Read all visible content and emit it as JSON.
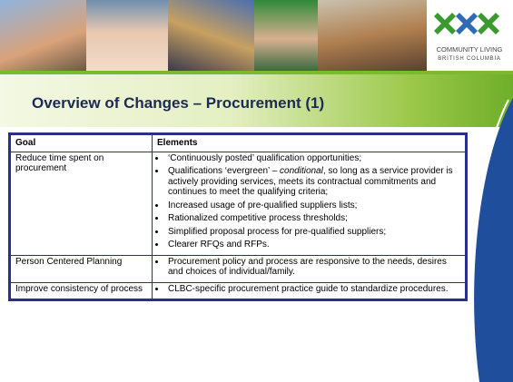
{
  "header": {
    "title": "Overview of Changes – Procurement (1)",
    "logo": {
      "line1": "COMMUNITY LIVING",
      "line2": "BRITISH COLUMBIA"
    }
  },
  "table": {
    "headers": [
      "Goal",
      "Elements"
    ],
    "rows": [
      {
        "goal": "Reduce time spent on procurement",
        "elements": [
          [
            {
              "text": "‘Continuously posted’ qualification opportunities;",
              "italic": false
            }
          ],
          [
            {
              "text": "Qualifications ‘evergreen’ – ",
              "italic": false
            },
            {
              "text": "conditional",
              "italic": true
            },
            {
              "text": ", so long as a service provider is actively providing services, meets its contractual commitments and continues to  meet the qualifying criteria;",
              "italic": false
            }
          ],
          [
            {
              "text": "Increased usage of pre-qualified suppliers lists;",
              "italic": false
            }
          ],
          [
            {
              "text": "Rationalized competitive process thresholds;",
              "italic": false
            }
          ],
          [
            {
              "text": "Simplified proposal process for pre-qualified suppliers;",
              "italic": false
            }
          ],
          [
            {
              "text": "Clearer RFQs and RFPs.",
              "italic": false
            }
          ]
        ]
      },
      {
        "goal": "Person Centered Planning",
        "elements": [
          [
            {
              "text": "Procurement policy and process are responsive to the needs, desires and choices of individual/family.",
              "italic": false
            }
          ]
        ]
      },
      {
        "goal": "Improve consistency of process",
        "elements": [
          [
            {
              "text": "CLBC-specific procurement practice guide to standardize procedures.",
              "italic": false
            }
          ]
        ]
      }
    ]
  }
}
